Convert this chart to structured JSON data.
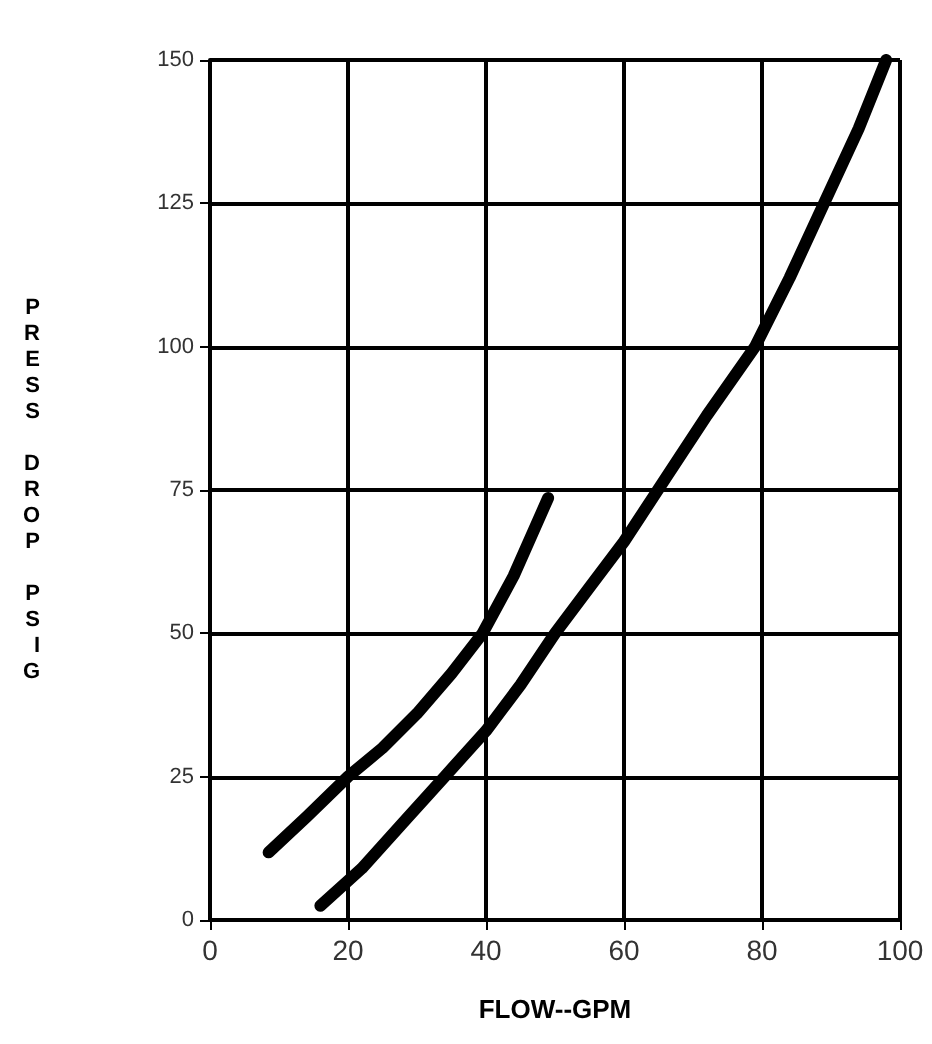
{
  "chart_data": {
    "type": "line",
    "xlabel": "FLOW--GPM",
    "ylabel": "PRESS DROP PSIG",
    "xlim": [
      0,
      100
    ],
    "xticks": [
      0,
      20,
      40,
      60,
      80,
      100
    ],
    "ylim": [
      0,
      150
    ],
    "yticks": [
      0,
      25,
      50,
      75,
      100,
      125,
      150
    ],
    "grid": true,
    "marker": "none",
    "line_style": "solid",
    "series": [
      {
        "color": "#000000",
        "x": [
          8.5,
          14,
          20,
          25,
          30,
          35,
          39.5,
          44,
          49
        ],
        "values": [
          11.8,
          18,
          25,
          30,
          36,
          43,
          50,
          60,
          73.6
        ]
      },
      {
        "color": "#000000",
        "x": [
          16,
          22,
          28,
          34,
          40,
          45,
          50,
          55,
          60,
          66,
          72,
          79,
          84,
          89,
          94,
          98
        ],
        "values": [
          2.5,
          9,
          17,
          25,
          33,
          41,
          50,
          58,
          66,
          77,
          88,
          100,
          112,
          125,
          138,
          150
        ]
      }
    ]
  }
}
